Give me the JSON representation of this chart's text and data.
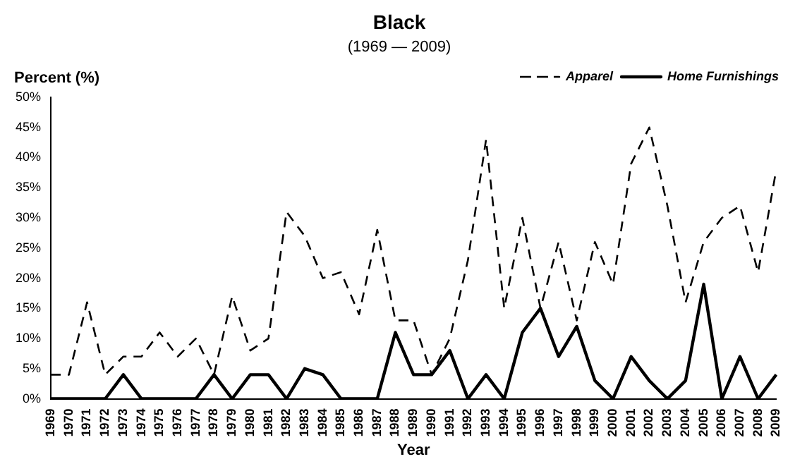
{
  "chart_data": {
    "type": "line",
    "title": "Black",
    "subtitle": "(1969 — 2009)",
    "xlabel": "Year",
    "ylabel": "Percent (%)",
    "categories": [
      "1969",
      "1970",
      "1971",
      "1972",
      "1973",
      "1974",
      "1975",
      "1976",
      "1977",
      "1978",
      "1979",
      "1980",
      "1981",
      "1982",
      "1983",
      "1984",
      "1985",
      "1986",
      "1987",
      "1988",
      "1989",
      "1990",
      "1991",
      "1992",
      "1993",
      "1994",
      "1995",
      "1996",
      "1997",
      "1998",
      "1999",
      "2000",
      "2001",
      "2002",
      "2003",
      "2004",
      "2005",
      "2006",
      "2007",
      "2008",
      "2009"
    ],
    "series": [
      {
        "name": "Apparel",
        "color": "#000000",
        "line_style": "dashed",
        "values": [
          4,
          4,
          16,
          4,
          7,
          7,
          11,
          7,
          10,
          4,
          17,
          8,
          10,
          31,
          27,
          20,
          21,
          14,
          28,
          13,
          13,
          4,
          10,
          23,
          43,
          15,
          30,
          15,
          26,
          13,
          26,
          19,
          39,
          45,
          32,
          16,
          26,
          30,
          32,
          21,
          38
        ]
      },
      {
        "name": "Home Furnishings",
        "color": "#000000",
        "line_style": "solid",
        "values": [
          0,
          0,
          0,
          0,
          4,
          0,
          0,
          0,
          0,
          4,
          0,
          4,
          4,
          0,
          5,
          4,
          0,
          0,
          0,
          11,
          4,
          4,
          8,
          0,
          4,
          0,
          11,
          15,
          7,
          12,
          3,
          0,
          7,
          3,
          0,
          3,
          19,
          0,
          7,
          0,
          4
        ]
      }
    ],
    "ylim": [
      0,
      50
    ],
    "yticks": [
      {
        "value": 0,
        "label": "0%"
      },
      {
        "value": 5,
        "label": "5%"
      },
      {
        "value": 10,
        "label": "10%"
      },
      {
        "value": 15,
        "label": "15%"
      },
      {
        "value": 20,
        "label": "20%"
      },
      {
        "value": 25,
        "label": "25%"
      },
      {
        "value": 30,
        "label": "30%"
      },
      {
        "value": 35,
        "label": "35%"
      },
      {
        "value": 40,
        "label": "40%"
      },
      {
        "value": 45,
        "label": "45%"
      },
      {
        "value": 50,
        "label": "50%"
      }
    ],
    "grid": false,
    "legend": "top right",
    "marker": "none"
  }
}
